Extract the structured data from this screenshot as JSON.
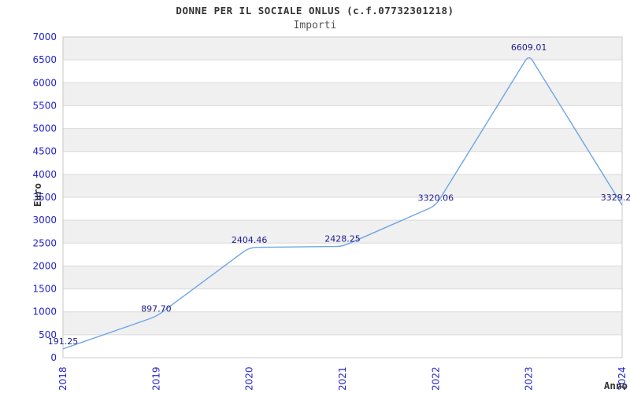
{
  "header": {
    "title": "DONNE PER IL SOCIALE ONLUS (c.f.07732301218)",
    "subtitle": "Importi"
  },
  "chart_data": {
    "type": "line",
    "title": "DONNE PER IL SOCIALE ONLUS (c.f.07732301218)",
    "subtitle": "Importi",
    "xlabel": "Anno",
    "ylabel": "Euro",
    "categories": [
      "2018",
      "2019",
      "2020",
      "2021",
      "2022",
      "2023",
      "2024"
    ],
    "values": [
      191.25,
      897.7,
      2404.46,
      2428.25,
      3320.06,
      6609.01,
      3329.2
    ],
    "point_labels": [
      "191.25",
      "897.70",
      "2404.46",
      "2428.25",
      "3320.06",
      "6609.01",
      "3329.2"
    ],
    "ylim": [
      0,
      7000
    ],
    "ytick_step": 500,
    "grid": "horizontal",
    "legend": "none",
    "band_fill": "alternating"
  },
  "colors": {
    "line": "#6fa5e6",
    "tick_label": "#2323cb",
    "point_label": "#1c1c90",
    "band": "#f0f0f0",
    "band_alt": "#ffffff",
    "gridline": "#d9d9d9",
    "border": "#c9c9c9",
    "axis_line": "#a9a9a9",
    "title": "#333333",
    "subtitle": "#555555",
    "axis_title": "#333333"
  }
}
